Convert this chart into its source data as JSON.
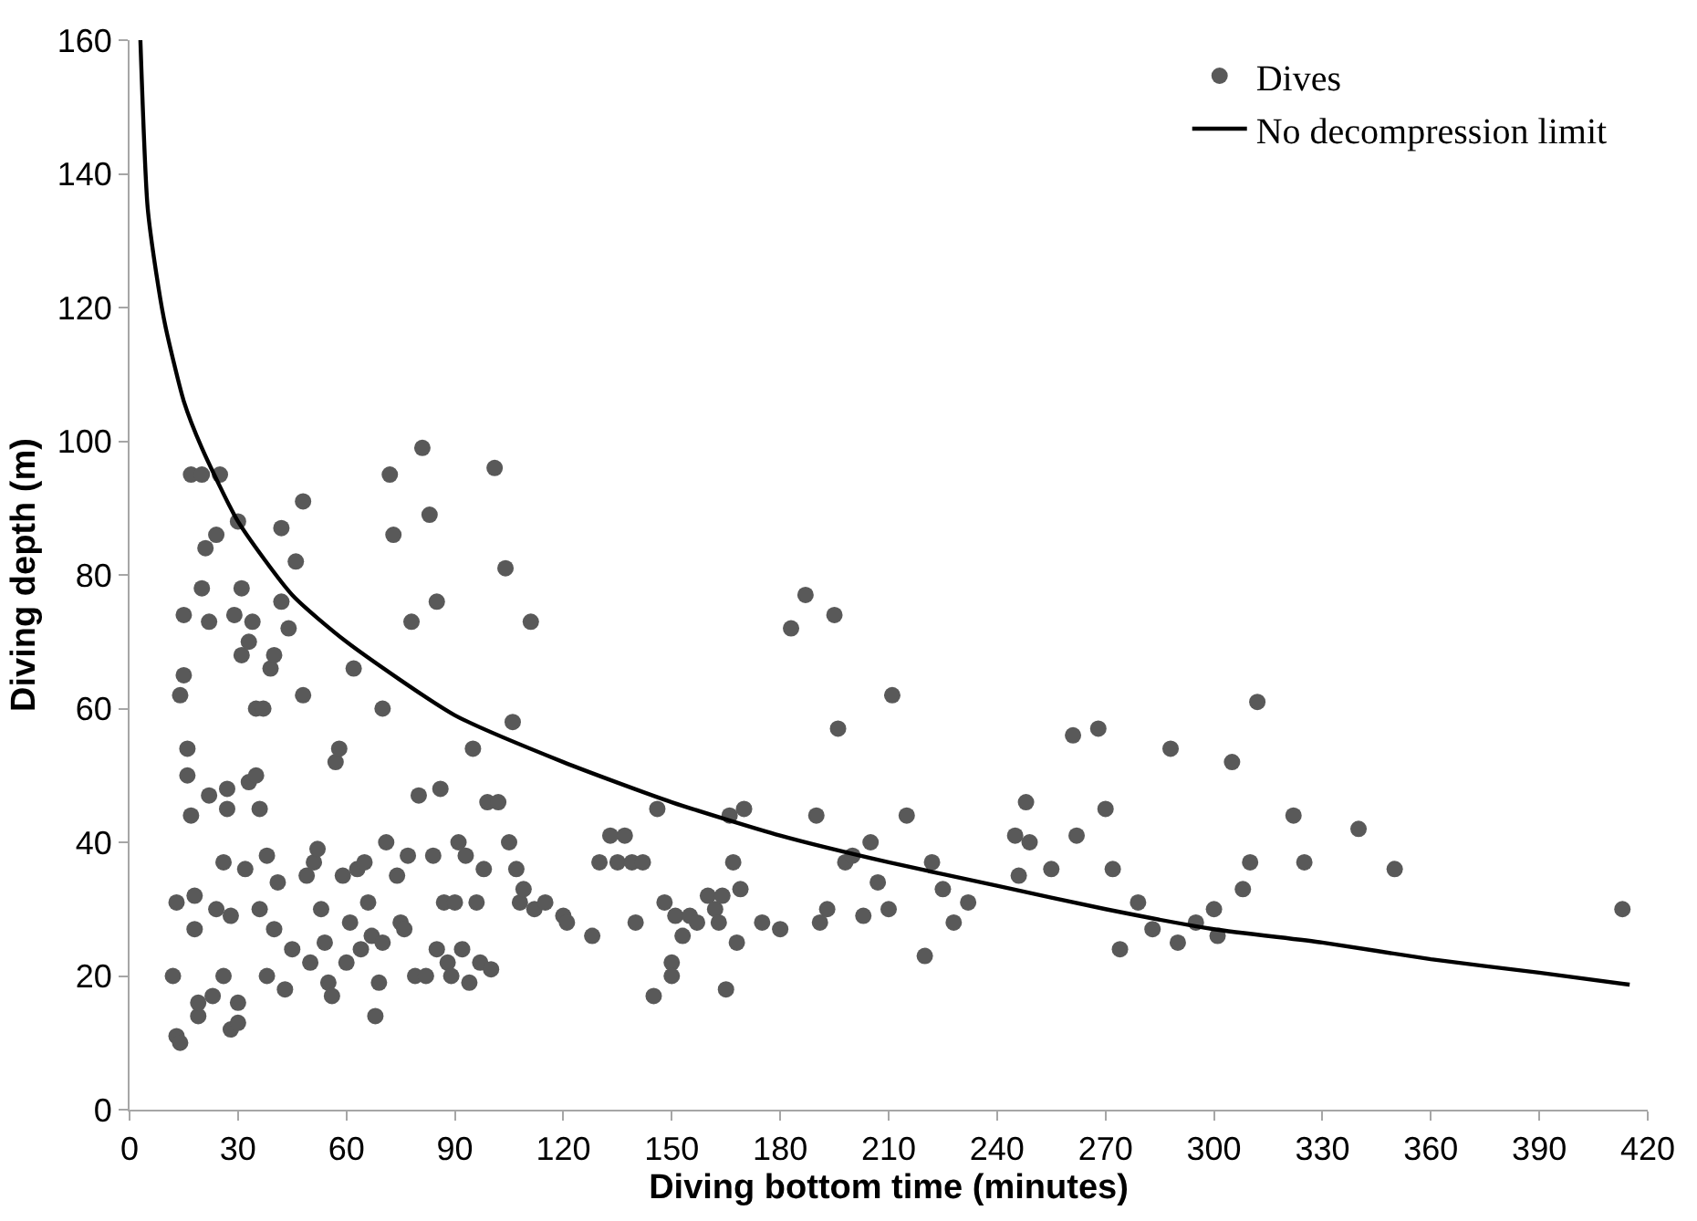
{
  "chart_data": {
    "type": "scatter",
    "xlabel": "Diving bottom time (minutes)",
    "ylabel": "Diving depth (m)",
    "xlim": [
      0,
      420
    ],
    "xticks": [
      0,
      30,
      60,
      90,
      120,
      150,
      180,
      210,
      240,
      270,
      300,
      330,
      360,
      390,
      420
    ],
    "ylim": [
      0,
      160
    ],
    "yticks": [
      0,
      20,
      40,
      60,
      80,
      100,
      120,
      140,
      160
    ],
    "legend": "top right",
    "series": [
      {
        "name": "Dives",
        "color": "#595959",
        "marker": "circle",
        "x": [
          12,
          13,
          14,
          13,
          14,
          15,
          15,
          16,
          16,
          17,
          17,
          18,
          18,
          19,
          19,
          20,
          20,
          21,
          22,
          22,
          24,
          23,
          24,
          25,
          26,
          26,
          27,
          27,
          28,
          28,
          29,
          30,
          30,
          30,
          31,
          31,
          32,
          33,
          33,
          34,
          35,
          35,
          36,
          36,
          37,
          38,
          38,
          39,
          40,
          40,
          41,
          42,
          42,
          43,
          44,
          45,
          46,
          48,
          48,
          49,
          50,
          51,
          52,
          53,
          54,
          55,
          56,
          57,
          58,
          59,
          60,
          61,
          62,
          63,
          64,
          65,
          66,
          67,
          68,
          69,
          70,
          70,
          71,
          72,
          73,
          74,
          75,
          76,
          77,
          78,
          79,
          80,
          81,
          82,
          83,
          84,
          85,
          85,
          86,
          87,
          88,
          89,
          90,
          91,
          92,
          93,
          94,
          95,
          96,
          97,
          98,
          99,
          100,
          101,
          102,
          104,
          105,
          106,
          107,
          108,
          109,
          111,
          112,
          115,
          120,
          121,
          128,
          130,
          133,
          135,
          137,
          139,
          140,
          142,
          145,
          146,
          148,
          150,
          150,
          151,
          153,
          155,
          157,
          160,
          162,
          163,
          164,
          165,
          166,
          167,
          168,
          169,
          170,
          175,
          180,
          183,
          187,
          190,
          191,
          193,
          195,
          196,
          198,
          200,
          203,
          205,
          207,
          210,
          211,
          215,
          220,
          222,
          225,
          228,
          232,
          245,
          246,
          248,
          249,
          255,
          261,
          262,
          268,
          270,
          272,
          274,
          279,
          283,
          288,
          290,
          295,
          300,
          301,
          305,
          308,
          310,
          312,
          322,
          325,
          340,
          350,
          413
        ],
        "values": [
          20,
          11,
          10,
          31,
          62,
          65,
          74,
          54,
          50,
          95,
          44,
          32,
          27,
          14,
          16,
          78,
          95,
          84,
          47,
          73,
          86,
          17,
          30,
          95,
          37,
          20,
          45,
          48,
          12,
          29,
          74,
          88,
          13,
          16,
          68,
          78,
          36,
          70,
          49,
          73,
          60,
          50,
          45,
          30,
          60,
          20,
          38,
          66,
          68,
          27,
          34,
          76,
          87,
          18,
          72,
          24,
          82,
          91,
          62,
          35,
          22,
          37,
          39,
          30,
          25,
          19,
          17,
          52,
          54,
          35,
          22,
          28,
          66,
          36,
          24,
          37,
          31,
          26,
          14,
          19,
          25,
          60,
          40,
          95,
          86,
          35,
          28,
          27,
          38,
          73,
          20,
          47,
          99,
          20,
          89,
          38,
          24,
          76,
          48,
          31,
          22,
          20,
          31,
          40,
          24,
          38,
          19,
          54,
          31,
          22,
          36,
          46,
          21,
          96,
          46,
          81,
          40,
          58,
          36,
          31,
          33,
          73,
          30,
          31,
          29,
          28,
          26,
          37,
          41,
          37,
          41,
          37,
          28,
          37,
          17,
          45,
          31,
          22,
          20,
          29,
          26,
          29,
          28,
          32,
          30,
          28,
          32,
          18,
          44,
          37,
          25,
          33,
          45,
          28,
          27,
          72,
          77,
          44,
          28,
          30,
          74,
          57,
          37,
          38,
          29,
          40,
          34,
          30,
          62,
          44,
          23,
          37,
          33,
          28,
          31,
          41,
          35,
          46,
          40,
          36,
          56,
          41,
          57,
          45,
          36,
          24,
          31,
          27,
          54,
          25,
          28,
          30,
          26,
          52,
          33,
          37,
          61,
          44,
          37,
          42,
          36,
          30
        ]
      },
      {
        "name": "No decompression limit",
        "type": "line",
        "color": "#000000",
        "marker": "none",
        "line_style": "solid",
        "x": [
          3,
          5,
          8,
          10,
          15,
          20,
          30,
          45,
          60,
          90,
          120,
          150,
          180,
          210,
          240,
          270,
          300,
          330,
          360,
          390,
          415
        ],
        "values": [
          160,
          135,
          123,
          117,
          106,
          99,
          88,
          77,
          70,
          59,
          52,
          46,
          41,
          37,
          33.5,
          30,
          27,
          25,
          22.5,
          20.5,
          18.7
        ]
      }
    ]
  }
}
